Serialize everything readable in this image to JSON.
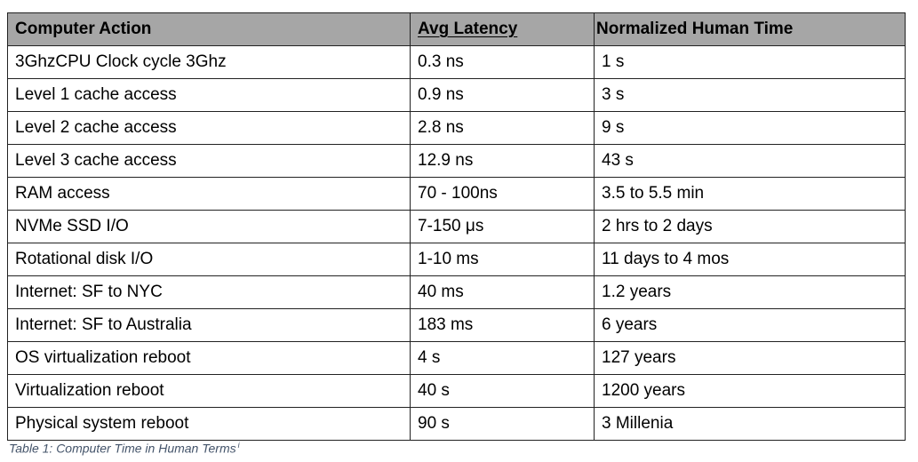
{
  "table": {
    "headers": [
      "Computer Action",
      "Avg Latency",
      "Normalized Human Time"
    ],
    "rows": [
      [
        "3GhzCPU Clock cycle 3Ghz",
        "0.3 ns",
        "1 s"
      ],
      [
        "Level 1 cache access",
        "0.9 ns",
        "3 s"
      ],
      [
        "Level 2 cache access",
        "2.8 ns",
        "9 s"
      ],
      [
        "Level 3 cache access",
        "12.9 ns",
        "43 s"
      ],
      [
        "RAM access",
        "70 - 100ns",
        "3.5 to 5.5 min"
      ],
      [
        "NVMe SSD I/O",
        "7-150 μs",
        "2 hrs to 2 days"
      ],
      [
        "Rotational disk I/O",
        "1-10 ms",
        "11 days to 4 mos"
      ],
      [
        "Internet: SF to NYC",
        "40 ms",
        "1.2 years"
      ],
      [
        "Internet: SF to Australia",
        "183 ms",
        "6 years"
      ],
      [
        "OS virtualization reboot",
        "4 s",
        "127 years"
      ],
      [
        "Virtualization reboot",
        "40 s",
        "1200 years"
      ],
      [
        "Physical system reboot",
        "90 s",
        "3 Millenia"
      ]
    ]
  },
  "caption": {
    "text": "Table 1: Computer Time in Human Terms",
    "note_mark": "i"
  }
}
